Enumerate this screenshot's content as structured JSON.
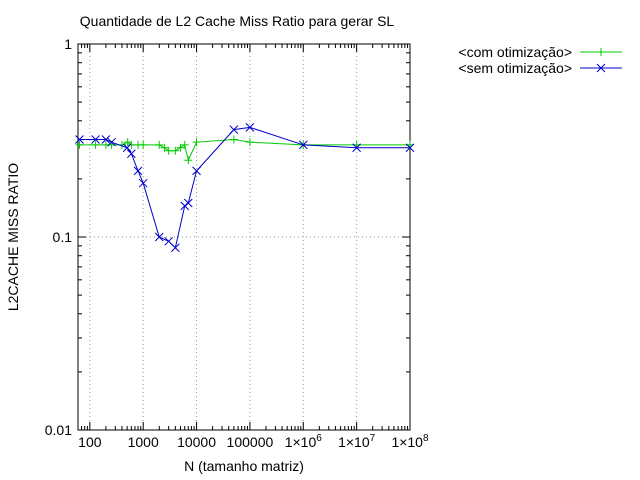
{
  "chart_data": {
    "type": "line",
    "title": "Quantidade de L2 Cache Miss Ratio para gerar SL",
    "xlabel": "N (tamanho matriz)",
    "ylabel": "L2CACHE MISS RATIO",
    "x_scale": "log",
    "y_scale": "log",
    "xlim": [
      60,
      100000000
    ],
    "ylim": [
      0.01,
      1
    ],
    "grid": true,
    "legend_position": "top-right outside plot",
    "x_ticks": [
      {
        "value": 100,
        "label": "100"
      },
      {
        "value": 1000,
        "label": "1000"
      },
      {
        "value": 10000,
        "label": "10000"
      },
      {
        "value": 100000,
        "label": "100000"
      },
      {
        "value": 1000000,
        "label": "1×10",
        "exp": "6"
      },
      {
        "value": 10000000,
        "label": "1×10",
        "exp": "7"
      },
      {
        "value": 100000000,
        "label": "1×10",
        "exp": "8"
      }
    ],
    "y_ticks": [
      {
        "value": 1,
        "label": "1"
      },
      {
        "value": 0.1,
        "label": "0.1"
      },
      {
        "value": 0.01,
        "label": "0.01"
      }
    ],
    "series": [
      {
        "name": "<com otimização>",
        "color": "#00cc00",
        "marker": "plus",
        "x": [
          64,
          128,
          200,
          256,
          400,
          512,
          600,
          800,
          1000,
          2000,
          2500,
          3000,
          4000,
          5000,
          6000,
          7000,
          10000,
          50000,
          100000,
          1000000,
          10000000,
          100000000
        ],
        "y": [
          0.3,
          0.3,
          0.3,
          0.3,
          0.3,
          0.31,
          0.3,
          0.3,
          0.3,
          0.3,
          0.29,
          0.28,
          0.28,
          0.29,
          0.3,
          0.25,
          0.31,
          0.32,
          0.31,
          0.3,
          0.3,
          0.3
        ]
      },
      {
        "name": "<sem otimização>",
        "color": "#0000cc",
        "marker": "x",
        "x": [
          64,
          128,
          200,
          256,
          500,
          600,
          800,
          1000,
          2000,
          3000,
          4000,
          6000,
          7000,
          10000,
          50000,
          100000,
          1000000,
          10000000,
          100000000
        ],
        "y": [
          0.32,
          0.32,
          0.32,
          0.31,
          0.29,
          0.27,
          0.22,
          0.19,
          0.1,
          0.095,
          0.088,
          0.145,
          0.15,
          0.22,
          0.36,
          0.37,
          0.3,
          0.29,
          0.29
        ]
      }
    ]
  }
}
